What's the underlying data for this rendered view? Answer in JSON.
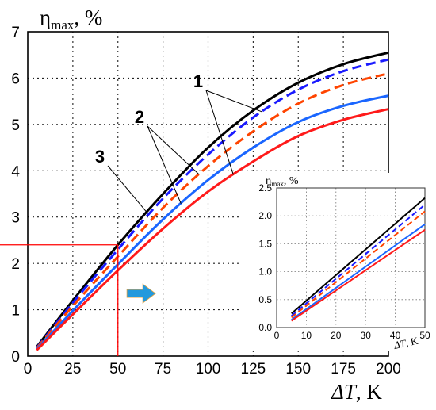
{
  "chart_data": [
    {
      "type": "line",
      "title": "",
      "xlabel": "ΔT, K",
      "ylabel": "η",
      "ylabel_sub": "max",
      "ylabel_unit": ", %",
      "xlim": [
        0,
        200
      ],
      "ylim": [
        0,
        7
      ],
      "xticks": [
        0,
        25,
        50,
        75,
        100,
        125,
        150,
        175,
        200
      ],
      "yticks": [
        0,
        1,
        2,
        3,
        4,
        5,
        6,
        7
      ],
      "grid": "dotted",
      "x": [
        5,
        25,
        50,
        75,
        100,
        125,
        150,
        175,
        200
      ],
      "series": [
        {
          "color": "#000000",
          "style": "solid",
          "values": [
            0.2,
            1.2,
            2.4,
            3.5,
            4.5,
            5.3,
            5.9,
            6.3,
            6.55
          ]
        },
        {
          "color": "#1a1aff",
          "style": "dashed",
          "values": [
            0.18,
            1.15,
            2.3,
            3.4,
            4.35,
            5.15,
            5.75,
            6.15,
            6.4
          ]
        },
        {
          "color": "#ff4400",
          "style": "dashed",
          "values": [
            0.17,
            1.08,
            2.15,
            3.2,
            4.1,
            4.85,
            5.45,
            5.85,
            6.1
          ]
        },
        {
          "color": "#1a66ff",
          "style": "solid",
          "values": [
            0.15,
            0.98,
            1.98,
            2.95,
            3.8,
            4.5,
            5.05,
            5.4,
            5.62
          ]
        },
        {
          "color": "#ff1a1a",
          "style": "solid",
          "values": [
            0.13,
            0.9,
            1.85,
            2.75,
            3.55,
            4.2,
            4.75,
            5.1,
            5.33
          ]
        }
      ],
      "annotations": [
        {
          "text": "1",
          "points_to": [
            "series 1 at x≈130",
            "series 4 at x≈114"
          ]
        },
        {
          "text": "2",
          "points_to": [
            "series 2 at x≈95",
            "series 3 at x≈85"
          ]
        },
        {
          "text": "3",
          "points_to": [
            "series 0 at x≈66"
          ]
        }
      ],
      "reference_lines": [
        {
          "axis": "y",
          "value": 2.4,
          "color": "#ff0000",
          "x_end": 50
        },
        {
          "axis": "x",
          "value": 50,
          "color": "#ff0000",
          "y_end": 2.4
        }
      ],
      "arrow": {
        "color": "#2299dd",
        "at_x": 55,
        "at_y": 1.35
      }
    },
    {
      "type": "line",
      "inset": true,
      "title": "",
      "xlabel": "ΔT, K",
      "ylabel": "η",
      "ylabel_sub": "max",
      "ylabel_unit": ", %",
      "xlim": [
        0,
        50
      ],
      "ylim": [
        0,
        2.5
      ],
      "xticks": [
        0,
        10,
        20,
        30,
        40,
        50
      ],
      "yticks": [
        "0.0",
        "0.5",
        "1.0",
        "1.5",
        "2.0",
        "2.5"
      ],
      "grid": "dotted",
      "x": [
        5,
        50
      ],
      "series": [
        {
          "color": "#000000",
          "style": "solid",
          "values": [
            0.25,
            2.32
          ]
        },
        {
          "color": "#1a1aff",
          "style": "dashed",
          "values": [
            0.21,
            2.2
          ]
        },
        {
          "color": "#ff4400",
          "style": "dashed",
          "values": [
            0.18,
            2.08
          ]
        },
        {
          "color": "#1a66ff",
          "style": "solid",
          "values": [
            0.14,
            1.85
          ]
        },
        {
          "color": "#ff1a1a",
          "style": "solid",
          "values": [
            0.12,
            1.75
          ]
        }
      ]
    }
  ]
}
